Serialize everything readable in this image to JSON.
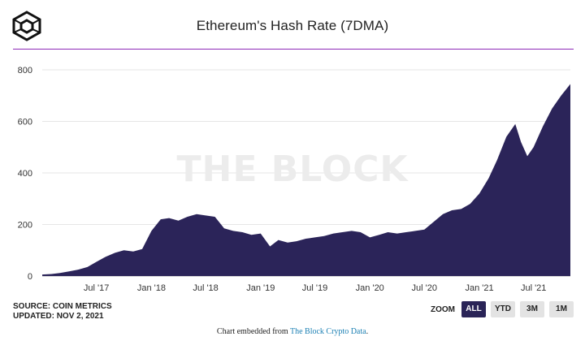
{
  "title": "Ethereum's Hash Rate (7DMA)",
  "source": "SOURCE: COIN METRICS",
  "updated": "UPDATED: NOV 2, 2021",
  "zoom": {
    "label": "ZOOM",
    "buttons": [
      "ALL",
      "YTD",
      "3M",
      "1M"
    ],
    "active": "ALL"
  },
  "watermark": "THE BLOCK",
  "embed": {
    "prefix": "Chart embedded from ",
    "link": "The Block Crypto Data",
    "suffix": "."
  },
  "colors": {
    "series": "#2b2459",
    "rule": "#8e2ab8",
    "grid": "#e6e6e6",
    "active_button": "#2a2457"
  },
  "chart_data": {
    "type": "area",
    "xlabel": "",
    "ylabel": "",
    "ylim": [
      0,
      800
    ],
    "yticks": [
      0,
      200,
      400,
      600,
      800
    ],
    "xticks": [
      "Jul '17",
      "Jan '18",
      "Jul '18",
      "Jan '19",
      "Jul '19",
      "Jan '20",
      "Jul '20",
      "Jan '21",
      "Jul '21"
    ],
    "grid": true,
    "series": [
      {
        "x": [
          "2017-01-01",
          "2017-02-01",
          "2017-03-01",
          "2017-04-01",
          "2017-05-01",
          "2017-06-01",
          "2017-07-01",
          "2017-08-01",
          "2017-09-01",
          "2017-10-01",
          "2017-11-01",
          "2017-12-01",
          "2018-01-01",
          "2018-02-01",
          "2018-03-01",
          "2018-04-01",
          "2018-05-01",
          "2018-06-01",
          "2018-07-01",
          "2018-08-01",
          "2018-09-01",
          "2018-10-01",
          "2018-11-01",
          "2018-12-01",
          "2019-01-01",
          "2019-02-01",
          "2019-03-01",
          "2019-04-01",
          "2019-05-01",
          "2019-06-01",
          "2019-07-01",
          "2019-08-01",
          "2019-09-01",
          "2019-10-01",
          "2019-11-01",
          "2019-12-01",
          "2020-01-01",
          "2020-02-01",
          "2020-03-01",
          "2020-04-01",
          "2020-05-01",
          "2020-06-01",
          "2020-07-01",
          "2020-08-01",
          "2020-09-01",
          "2020-10-01",
          "2020-11-01",
          "2020-12-01",
          "2021-01-01",
          "2021-02-01",
          "2021-03-01",
          "2021-04-01",
          "2021-05-01",
          "2021-05-20",
          "2021-06-10",
          "2021-07-01",
          "2021-08-01",
          "2021-09-01",
          "2021-10-01",
          "2021-11-01"
        ],
        "values": [
          6,
          8,
          12,
          18,
          25,
          35,
          55,
          75,
          90,
          100,
          95,
          105,
          175,
          220,
          225,
          215,
          230,
          240,
          235,
          230,
          185,
          175,
          170,
          160,
          165,
          115,
          140,
          130,
          135,
          145,
          150,
          155,
          165,
          170,
          175,
          170,
          150,
          160,
          170,
          165,
          170,
          175,
          180,
          210,
          240,
          255,
          260,
          280,
          320,
          380,
          450,
          540,
          590,
          520,
          465,
          500,
          580,
          650,
          700,
          745
        ]
      }
    ]
  }
}
